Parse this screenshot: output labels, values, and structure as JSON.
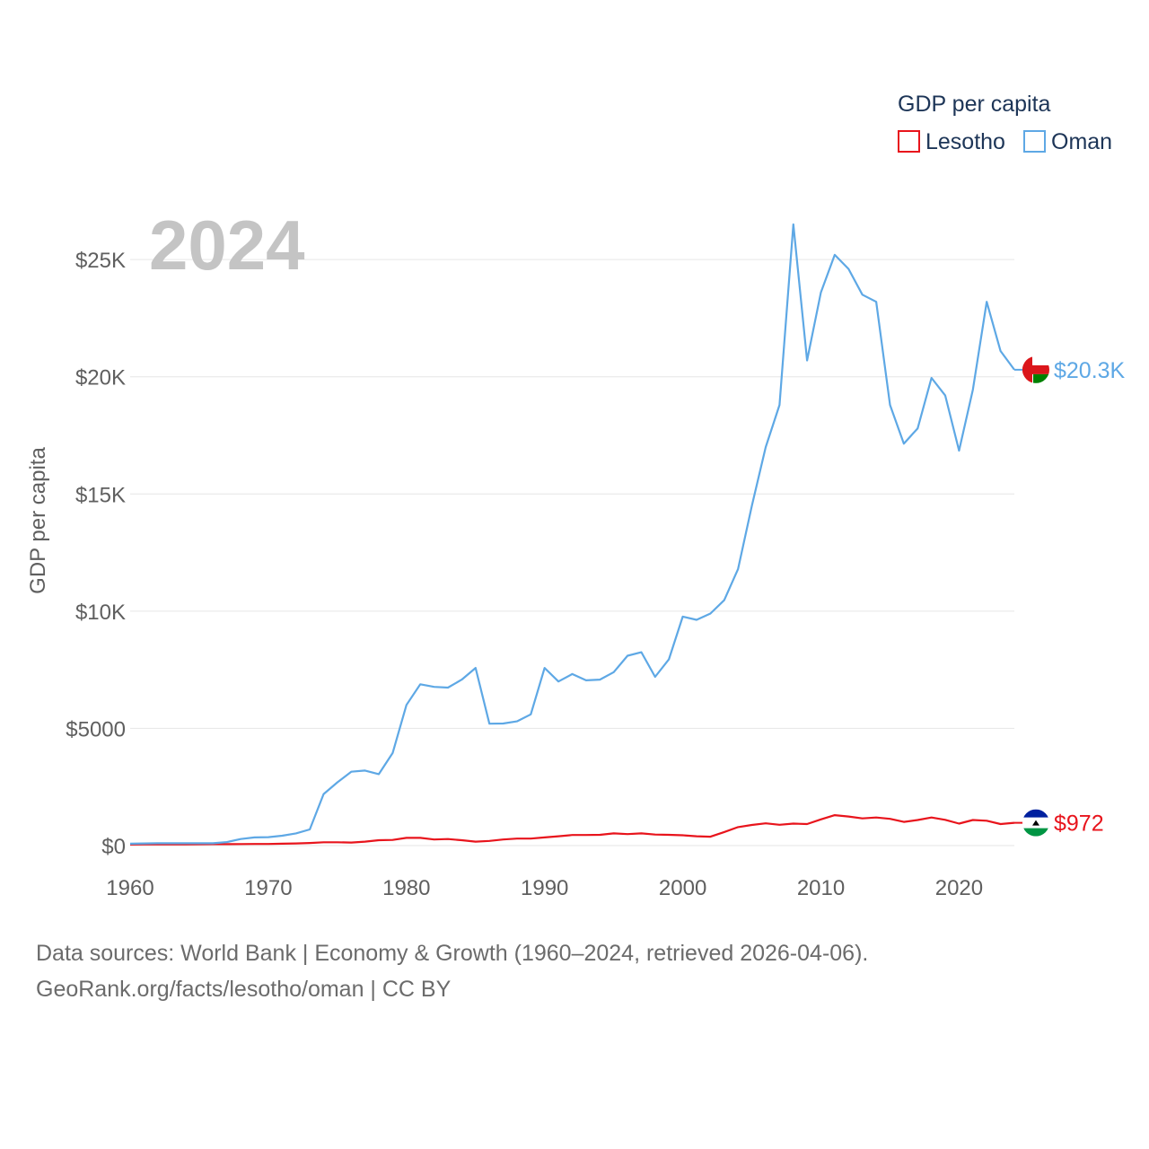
{
  "chart_data": {
    "type": "line",
    "title": "GDP per capita",
    "current_year": "2024",
    "ylabel": "GDP per capita",
    "xlabel": "",
    "xlim": [
      1960,
      2024
    ],
    "ylim": [
      0,
      26500
    ],
    "x_ticks": [
      1960,
      1970,
      1980,
      1990,
      2000,
      2010,
      2020
    ],
    "y_ticks": [
      {
        "value": 0,
        "label": "$0"
      },
      {
        "value": 5000,
        "label": "$5000"
      },
      {
        "value": 10000,
        "label": "$10K"
      },
      {
        "value": 15000,
        "label": "$15K"
      },
      {
        "value": 20000,
        "label": "$20K"
      },
      {
        "value": 25000,
        "label": "$25K"
      }
    ],
    "legend_position": "top-right",
    "x": [
      1960,
      1961,
      1962,
      1963,
      1964,
      1965,
      1966,
      1967,
      1968,
      1969,
      1970,
      1971,
      1972,
      1973,
      1974,
      1975,
      1976,
      1977,
      1978,
      1979,
      1980,
      1981,
      1982,
      1983,
      1984,
      1985,
      1986,
      1987,
      1988,
      1989,
      1990,
      1991,
      1992,
      1993,
      1994,
      1995,
      1996,
      1997,
      1998,
      1999,
      2000,
      2001,
      2002,
      2003,
      2004,
      2005,
      2006,
      2007,
      2008,
      2009,
      2010,
      2011,
      2012,
      2013,
      2014,
      2015,
      2016,
      2017,
      2018,
      2019,
      2020,
      2021,
      2022,
      2023,
      2024
    ],
    "series": [
      {
        "name": "Lesotho",
        "color": "#e8141c",
        "end_label": "$972",
        "flag": "lesotho-flag",
        "values": [
          45,
          48,
          50,
          52,
          55,
          58,
          60,
          62,
          65,
          68,
          70,
          80,
          90,
          110,
          140,
          140,
          130,
          170,
          230,
          240,
          330,
          330,
          260,
          280,
          230,
          170,
          200,
          260,
          300,
          300,
          350,
          400,
          450,
          450,
          460,
          520,
          490,
          520,
          470,
          460,
          440,
          400,
          380,
          580,
          790,
          880,
          950,
          890,
          940,
          920,
          1120,
          1300,
          1240,
          1160,
          1200,
          1140,
          1010,
          1090,
          1200,
          1100,
          940,
          1090,
          1060,
          920,
          972
        ]
      },
      {
        "name": "Oman",
        "color": "#5ea8e5",
        "end_label": "$20.3K",
        "flag": "oman-flag",
        "values": [
          80,
          90,
          100,
          100,
          100,
          100,
          100,
          150,
          280,
          350,
          360,
          420,
          520,
          690,
          2200,
          2700,
          3150,
          3200,
          3050,
          3950,
          6000,
          6880,
          6770,
          6740,
          7080,
          7580,
          5200,
          5210,
          5300,
          5600,
          7580,
          7000,
          7320,
          7050,
          7080,
          7400,
          8100,
          8250,
          7200,
          7950,
          9770,
          9630,
          9900,
          10470,
          11800,
          14500,
          17000,
          18800,
          26500,
          20700,
          23600,
          25200,
          24600,
          23500,
          23200,
          18800,
          17150,
          17800,
          19950,
          19200,
          16850,
          19450,
          23200,
          21100,
          20300
        ]
      }
    ]
  },
  "footer": {
    "line1": "Data sources: World Bank | Economy & Growth (1960–2024, retrieved 2026-04-06).",
    "line2": "GeoRank.org/facts/lesotho/oman | CC BY"
  }
}
